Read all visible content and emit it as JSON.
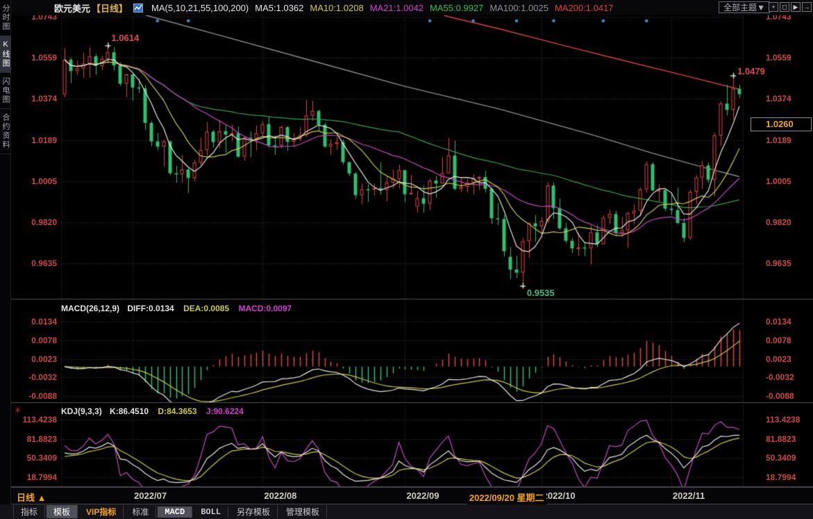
{
  "sidebar": {
    "items": [
      {
        "label": "分时图",
        "active": false
      },
      {
        "label": "K线图",
        "active": true
      },
      {
        "label": "闪电图",
        "active": false
      },
      {
        "label": "合约资料",
        "active": false
      }
    ]
  },
  "header": {
    "symbol": "欧元美元",
    "period": "【日线】",
    "ma_title": "MA(5,10,21,55,100,200)",
    "ma_values": [
      {
        "text": "MA5:1.0362",
        "color": "#e8e8e8"
      },
      {
        "text": "MA10:1.0208",
        "color": "#cdcd3e"
      },
      {
        "text": "MA21:1.0042",
        "color": "#d43cd4"
      },
      {
        "text": "MA55:0.9927",
        "color": "#34c04e"
      },
      {
        "text": "MA100:1.0025",
        "color": "#8e8e96"
      },
      {
        "text": "MA200:1.0417",
        "color": "#e04040"
      }
    ],
    "theme_button": "全部主题▼",
    "window_icons": [
      {
        "name": "move-icon",
        "glyph": "+"
      },
      {
        "name": "pan-left-icon",
        "glyph": "◻"
      },
      {
        "name": "pan-right-icon",
        "glyph": "▶"
      },
      {
        "name": "exit-icon",
        "glyph": "→"
      }
    ]
  },
  "price_panel": {
    "y_ticks": [
      "1.0743",
      "1.0559",
      "1.0374",
      "1.0189",
      "1.0005",
      "0.9820",
      "0.9635"
    ],
    "annotations": {
      "high1": "1.0614",
      "high2": "1.0479",
      "low": "0.9535"
    },
    "price_box": "1.0260"
  },
  "macd_panel": {
    "title": "MACD(26,12,9)",
    "diff_label": "DIFF:0.0134",
    "dea_label": "DEA:0.0085",
    "macd_label": "MACD:0.0097",
    "y_ticks": [
      "0.0134",
      "0.0078",
      "0.0023",
      "-0.0032",
      "-0.0088"
    ]
  },
  "kdj_panel": {
    "title": "KDJ(9,3,3)",
    "k_label": "K:86.4510",
    "d_label": "D:84.3653",
    "j_label": "J:90.6224",
    "y_ticks": [
      "113.4238",
      "81.8823",
      "50.3409",
      "18.7994"
    ]
  },
  "x_axis": {
    "labels": [
      "2022/07",
      "2022/08",
      "2022/09",
      "2022/10",
      "2022/11"
    ],
    "crosshair_label": "2022/09/20 星期二"
  },
  "footer": {
    "period_selector": "日线",
    "arrow": "▲"
  },
  "toolbar": {
    "tabs": [
      {
        "label": "指标"
      },
      {
        "label": "模板",
        "active": true
      },
      {
        "label": "VIP指标",
        "vip": true
      },
      {
        "label": "标准"
      },
      {
        "label": "MACD",
        "active": true,
        "mono": true
      },
      {
        "label": "BOLL",
        "mono": true
      },
      {
        "label": "另存模板"
      },
      {
        "label": "管理模板"
      }
    ]
  },
  "colors": {
    "up": "#e84545",
    "down": "#2fbf71",
    "axis_text": "#cd4545",
    "ma5": "#e8e8e8",
    "ma10": "#cdcd3e",
    "ma21": "#c84ac8",
    "ma55": "#34a04e",
    "ma100": "#8e8e96",
    "ma200": "#e04040",
    "grid": "#3a3a42",
    "separator": "#50505a",
    "news_dot": "#3a8ad0",
    "orange": "#f5a218",
    "marker": "#ffffff"
  },
  "chart_data": {
    "type": "candlestick",
    "title": "欧元美元 日线 (EUR/USD Daily)",
    "period": "daily",
    "y_range": [
      0.9535,
      1.0743
    ],
    "legend_position": "top",
    "grid": "dotted",
    "candles": [
      [
        "06-16",
        1.0395,
        1.0601,
        1.0381,
        1.055
      ],
      [
        "06-17",
        1.055,
        1.0557,
        1.0445,
        1.0499
      ],
      [
        "06-20",
        1.0499,
        1.0546,
        1.0481,
        1.0511
      ],
      [
        "06-21",
        1.0511,
        1.0582,
        1.0468,
        1.0533
      ],
      [
        "06-22",
        1.0533,
        1.0605,
        1.0469,
        1.0565
      ],
      [
        "06-23",
        1.0565,
        1.0576,
        1.0483,
        1.0522
      ],
      [
        "06-24",
        1.0522,
        1.0568,
        1.0504,
        1.0553
      ],
      [
        "06-27",
        1.0553,
        1.0614,
        1.0532,
        1.0583
      ],
      [
        "06-28",
        1.0583,
        1.0606,
        1.0501,
        1.0524
      ],
      [
        "06-29",
        1.0524,
        1.0537,
        1.0433,
        1.0442
      ],
      [
        "06-30",
        1.0442,
        1.0488,
        1.0382,
        1.0484
      ],
      [
        "07-01",
        1.0484,
        1.0486,
        1.0365,
        1.0425
      ],
      [
        "07-04",
        1.0425,
        1.0463,
        1.04,
        1.0421
      ],
      [
        "07-05",
        1.0421,
        1.0436,
        1.0235,
        1.0266
      ],
      [
        "07-06",
        1.0266,
        1.0276,
        1.0161,
        1.0183
      ],
      [
        "07-07",
        1.0183,
        1.0221,
        1.0143,
        1.016
      ],
      [
        "07-08",
        1.016,
        1.019,
        1.0071,
        1.0183
      ],
      [
        "07-11",
        1.0183,
        1.0188,
        1.0032,
        1.004
      ],
      [
        "07-12",
        1.004,
        1.0074,
        0.9998,
        1.0036
      ],
      [
        "07-13",
        1.0036,
        1.0122,
        0.9998,
        1.0057
      ],
      [
        "07-14",
        1.0057,
        1.0062,
        0.9952,
        1.0019
      ],
      [
        "07-15",
        1.0019,
        1.0101,
        1.0004,
        1.0088
      ],
      [
        "07-18",
        1.0088,
        1.0201,
        1.0077,
        1.0144
      ],
      [
        "07-19",
        1.0144,
        1.0269,
        1.0119,
        1.0227
      ],
      [
        "07-20",
        1.0227,
        1.0235,
        1.0155,
        1.018
      ],
      [
        "07-21",
        1.018,
        1.0279,
        1.0153,
        1.0229
      ],
      [
        "07-22",
        1.0229,
        1.0257,
        1.013,
        1.0214
      ],
      [
        "07-25",
        1.0214,
        1.0258,
        1.0183,
        1.022
      ],
      [
        "07-26",
        1.022,
        1.025,
        1.0108,
        1.0115
      ],
      [
        "07-27",
        1.0115,
        1.0206,
        1.0097,
        1.02
      ],
      [
        "07-28",
        1.02,
        1.0228,
        1.0113,
        1.0196
      ],
      [
        "07-29",
        1.0196,
        1.0254,
        1.0144,
        1.022
      ],
      [
        "08-01",
        1.022,
        1.0275,
        1.0205,
        1.0261
      ],
      [
        "08-02",
        1.0261,
        1.0293,
        1.0155,
        1.0166
      ],
      [
        "08-03",
        1.0166,
        1.0209,
        1.0123,
        1.0165
      ],
      [
        "08-04",
        1.0165,
        1.0254,
        1.0152,
        1.0247
      ],
      [
        "08-05",
        1.0247,
        1.0251,
        1.0141,
        1.0181
      ],
      [
        "08-08",
        1.0181,
        1.0221,
        1.0158,
        1.0193
      ],
      [
        "08-09",
        1.0193,
        1.0248,
        1.0185,
        1.0212
      ],
      [
        "08-10",
        1.0212,
        1.0369,
        1.0203,
        1.0299
      ],
      [
        "08-11",
        1.0299,
        1.0365,
        1.0276,
        1.032
      ],
      [
        "08-12",
        1.032,
        1.0324,
        1.0232,
        1.0258
      ],
      [
        "08-15",
        1.0258,
        1.0268,
        1.0154,
        1.016
      ],
      [
        "08-16",
        1.016,
        1.0193,
        1.0122,
        1.0172
      ],
      [
        "08-17",
        1.0172,
        1.0203,
        1.0147,
        1.018
      ],
      [
        "08-18",
        1.018,
        1.0191,
        1.0079,
        1.009
      ],
      [
        "08-19",
        1.009,
        1.0092,
        1.0027,
        1.0039
      ],
      [
        "08-22",
        1.0039,
        1.0046,
        0.9926,
        0.9942
      ],
      [
        "08-23",
        0.9942,
        0.9993,
        0.9901,
        0.9968
      ],
      [
        "08-24",
        0.9968,
        0.9992,
        0.9912,
        0.9967
      ],
      [
        "08-25",
        0.9967,
        0.9995,
        0.9941,
        0.9973
      ],
      [
        "08-26",
        0.9973,
        1.009,
        0.9944,
        0.9965
      ],
      [
        "08-29",
        0.9965,
        1.0028,
        0.9914,
        0.9998
      ],
      [
        "08-30",
        0.9998,
        1.0055,
        0.9972,
        1.0015
      ],
      [
        "08-31",
        1.0015,
        1.0079,
        0.9972,
        1.0054
      ],
      [
        "09-01",
        1.0054,
        1.0055,
        0.991,
        0.9946
      ],
      [
        "09-02",
        0.9946,
        1.0033,
        0.9944,
        0.9952
      ],
      [
        "09-05",
        0.989,
        0.9962,
        0.9864,
        0.9928
      ],
      [
        "09-06",
        0.9928,
        0.9986,
        0.9863,
        0.9903
      ],
      [
        "09-07",
        0.9903,
        1.0014,
        0.9876,
        1.0007
      ],
      [
        "09-08",
        1.0007,
        1.0029,
        0.993,
        0.9994
      ],
      [
        "09-09",
        0.9994,
        1.0113,
        0.9993,
        1.004
      ],
      [
        "09-12",
        1.004,
        1.0198,
        1.004,
        1.012
      ],
      [
        "09-13",
        1.012,
        1.0187,
        0.9964,
        0.997
      ],
      [
        "09-14",
        0.997,
        1.0023,
        0.9955,
        0.9979
      ],
      [
        "09-15",
        0.9979,
        1.0017,
        0.9954,
        0.9998
      ],
      [
        "09-16",
        0.9998,
        1.0036,
        0.9945,
        1.0016
      ],
      [
        "09-19",
        1.0016,
        1.0029,
        0.9966,
        1.0023
      ],
      [
        "09-20",
        1.0023,
        1.0051,
        0.9954,
        0.997
      ],
      [
        "09-21",
        0.997,
        0.9976,
        0.9812,
        0.9838
      ],
      [
        "09-22",
        0.9838,
        0.9907,
        0.9807,
        0.9835
      ],
      [
        "09-23",
        0.9835,
        0.9852,
        0.9666,
        0.969
      ],
      [
        "09-26",
        0.9665,
        0.9709,
        0.9565,
        0.9608
      ],
      [
        "09-27",
        0.9608,
        0.9671,
        0.957,
        0.9594
      ],
      [
        "09-28",
        0.9594,
        0.975,
        0.9535,
        0.9735
      ],
      [
        "09-29",
        0.9735,
        0.9819,
        0.9662,
        0.9815
      ],
      [
        "09-30",
        0.9815,
        0.9853,
        0.9733,
        0.9802
      ],
      [
        "10-03",
        0.9802,
        0.9844,
        0.9753,
        0.9826
      ],
      [
        "10-04",
        0.9826,
        0.9999,
        0.9818,
        0.9985
      ],
      [
        "10-05",
        0.9985,
        0.9999,
        0.9835,
        0.9884
      ],
      [
        "10-06",
        0.9884,
        0.9926,
        0.9787,
        0.9793
      ],
      [
        "10-07",
        0.9793,
        0.9817,
        0.9726,
        0.9737
      ],
      [
        "10-10",
        0.9737,
        0.975,
        0.9681,
        0.9703
      ],
      [
        "10-11",
        0.9703,
        0.9774,
        0.967,
        0.9707
      ],
      [
        "10-12",
        0.9707,
        0.9732,
        0.9668,
        0.9703
      ],
      [
        "10-13",
        0.9703,
        0.9807,
        0.9632,
        0.9775
      ],
      [
        "10-14",
        0.9775,
        0.9807,
        0.9709,
        0.9721
      ],
      [
        "10-17",
        0.9721,
        0.9852,
        0.9721,
        0.984
      ],
      [
        "10-18",
        0.984,
        0.9875,
        0.9813,
        0.9857
      ],
      [
        "10-19",
        0.9857,
        0.9872,
        0.9757,
        0.9772
      ],
      [
        "10-20",
        0.9772,
        0.9844,
        0.9754,
        0.9785
      ],
      [
        "10-21",
        0.9785,
        0.9867,
        0.9705,
        0.9861
      ],
      [
        "10-24",
        0.9861,
        0.9899,
        0.981,
        0.9872
      ],
      [
        "10-25",
        0.9872,
        0.9976,
        0.9848,
        0.9968
      ],
      [
        "10-26",
        0.9968,
        1.0093,
        0.9953,
        1.0081
      ],
      [
        "10-27",
        1.0081,
        1.009,
        0.9959,
        0.9963
      ],
      [
        "10-28",
        0.9963,
        0.999,
        0.9912,
        0.9965
      ],
      [
        "10-31",
        0.9965,
        0.9967,
        0.987,
        0.9881
      ],
      [
        "11-01",
        0.9881,
        0.9954,
        0.9853,
        0.9875
      ],
      [
        "11-02",
        0.9875,
        0.9976,
        0.9812,
        0.9817
      ],
      [
        "11-03",
        0.9817,
        0.984,
        0.973,
        0.975
      ],
      [
        "11-04",
        0.975,
        0.9965,
        0.9742,
        0.9957
      ],
      [
        "11-07",
        0.9957,
        1.0031,
        0.9902,
        1.0021
      ],
      [
        "11-08",
        1.0021,
        1.0096,
        0.9971,
        1.0075
      ],
      [
        "11-09",
        1.0075,
        1.0088,
        0.9998,
        1.0011
      ],
      [
        "11-10",
        1.0011,
        1.0222,
        0.9936,
        1.021
      ],
      [
        "11-11",
        1.021,
        1.0364,
        1.0163,
        1.0353
      ],
      [
        "11-14",
        1.0353,
        1.0437,
        1.03,
        1.0325
      ],
      [
        "11-15",
        1.0325,
        1.0479,
        1.028,
        1.042
      ],
      [
        "11-16",
        1.042,
        1.0438,
        1.0378,
        1.0395
      ]
    ],
    "ma_periods": [
      5,
      10,
      21,
      55
    ],
    "ma100_points": [
      [
        0,
        1.085
      ],
      [
        14,
        1.0743
      ],
      [
        25,
        1.066
      ],
      [
        40,
        1.0545
      ],
      [
        55,
        1.043
      ],
      [
        70,
        1.033
      ],
      [
        85,
        1.0215
      ],
      [
        95,
        1.013
      ],
      [
        103,
        1.0068
      ],
      [
        109,
        1.0025
      ]
    ],
    "ma200_points": [
      [
        60,
        1.0762
      ],
      [
        62,
        1.0743
      ],
      [
        70,
        1.069
      ],
      [
        80,
        1.0618
      ],
      [
        90,
        1.0548
      ],
      [
        100,
        1.048
      ],
      [
        109,
        1.0417
      ]
    ],
    "news_dot_bars": [
      15,
      20,
      59,
      66,
      73,
      79,
      87,
      94
    ],
    "markers": {
      "high1_bar": 7,
      "low_bar": 74,
      "high2_bar": 108
    },
    "macd": {
      "fast": 12,
      "slow": 26,
      "signal": 9,
      "diff": 0.0134,
      "dea": 0.0085,
      "macd": 0.0097
    },
    "kdj": {
      "n": 9,
      "m1": 3,
      "m2": 3,
      "k": 86.451,
      "d": 84.3653,
      "j": 90.6224
    }
  }
}
